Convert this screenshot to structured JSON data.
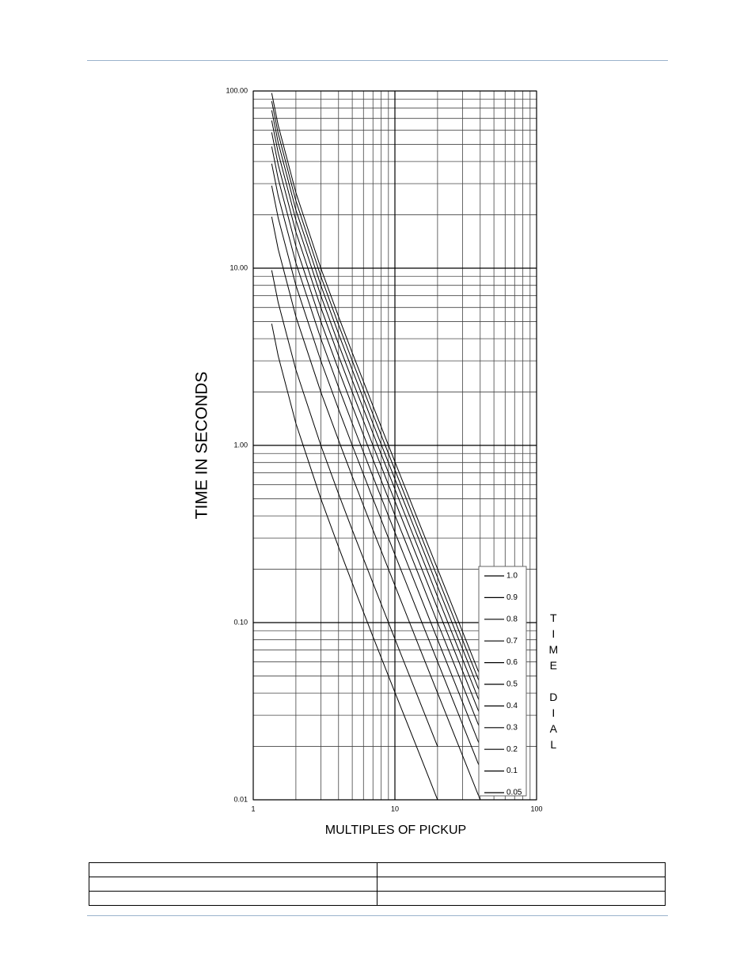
{
  "chart_data": {
    "type": "line",
    "x_label": "MULTIPLES OF PICKUP",
    "y_label": "TIME IN SECONDS",
    "legend_title": "TIME DIAL",
    "x_scale": "log",
    "y_scale": "log",
    "grid": true,
    "legend": "lower right",
    "xlim": [
      1,
      100
    ],
    "xticks": [
      1,
      10,
      100
    ],
    "ylim": [
      0.01,
      100
    ],
    "yticks": [
      {
        "value": 0.01,
        "label": "0.01"
      },
      {
        "value": 0.1,
        "label": "0.10"
      },
      {
        "value": 1,
        "label": "1.00"
      },
      {
        "value": 10,
        "label": "10.00"
      },
      {
        "value": 100,
        "label": "100.00"
      }
    ],
    "xgrid": [
      2,
      3,
      4,
      5,
      6,
      7,
      8,
      9,
      20,
      30,
      40,
      50,
      60,
      70,
      80,
      90
    ],
    "ygrid": [
      0.02,
      0.03,
      0.04,
      0.05,
      0.06,
      0.07,
      0.08,
      0.09,
      0.2,
      0.3,
      0.4,
      0.5,
      0.6,
      0.7,
      0.8,
      0.9,
      2,
      3,
      4,
      5,
      6,
      7,
      8,
      9,
      20,
      30,
      40,
      50,
      60,
      70,
      80,
      90
    ],
    "x": [
      1.35,
      1.5,
      2,
      3,
      4,
      5,
      7,
      10,
      15,
      20,
      30,
      40
    ],
    "series": [
      {
        "name": "1.0",
        "color": "#000000",
        "values": [
          97.3,
          64.0,
          26.7,
          10.0,
          5.33,
          3.33,
          1.67,
          0.808,
          0.357,
          0.201,
          0.089,
          0.05
        ]
      },
      {
        "name": "0.9",
        "color": "#000000",
        "values": [
          87.6,
          57.6,
          24.0,
          9.0,
          4.8,
          3.0,
          1.5,
          0.727,
          0.321,
          0.18,
          0.08,
          0.045
        ]
      },
      {
        "name": "0.8",
        "color": "#000000",
        "values": [
          77.8,
          51.2,
          21.3,
          8.0,
          4.27,
          2.67,
          1.33,
          0.646,
          0.286,
          0.16,
          0.0712,
          0.04
        ]
      },
      {
        "name": "0.7",
        "color": "#000000",
        "values": [
          68.1,
          44.8,
          18.7,
          7.0,
          3.73,
          2.33,
          1.17,
          0.566,
          0.25,
          0.14,
          0.0623,
          0.035
        ]
      },
      {
        "name": "0.6",
        "color": "#000000",
        "values": [
          58.4,
          38.4,
          16.0,
          6.0,
          3.2,
          2.0,
          1.0,
          0.485,
          0.214,
          0.12,
          0.0534,
          0.03
        ]
      },
      {
        "name": "0.5",
        "color": "#000000",
        "values": [
          48.6,
          32.0,
          13.3,
          5.0,
          2.67,
          1.67,
          0.833,
          0.404,
          0.179,
          0.1,
          0.0445,
          0.025
        ]
      },
      {
        "name": "0.4",
        "color": "#000000",
        "values": [
          38.9,
          25.6,
          10.7,
          4.0,
          2.13,
          1.33,
          0.667,
          0.323,
          0.143,
          0.0802,
          0.0356,
          0.02
        ]
      },
      {
        "name": "0.3",
        "color": "#000000",
        "values": [
          29.2,
          19.2,
          8.0,
          3.0,
          1.6,
          1.0,
          0.5,
          0.242,
          0.107,
          0.0602,
          0.0267,
          0.015
        ]
      },
      {
        "name": "0.2",
        "color": "#000000",
        "values": [
          19.5,
          12.8,
          5.33,
          2.0,
          1.07,
          0.667,
          0.333,
          0.162,
          0.0714,
          0.0401,
          0.0178,
          0.01
        ]
      },
      {
        "name": "0.1",
        "color": "#000000",
        "values": [
          9.73,
          6.4,
          2.67,
          1.0,
          0.533,
          0.333,
          0.167,
          0.0808,
          0.0357,
          0.02,
          null,
          null
        ]
      },
      {
        "name": "0.05",
        "color": "#000000",
        "values": [
          4.86,
          3.2,
          1.33,
          0.5,
          0.267,
          0.167,
          0.0833,
          0.0404,
          0.0179,
          0.01,
          null,
          null
        ]
      }
    ]
  }
}
